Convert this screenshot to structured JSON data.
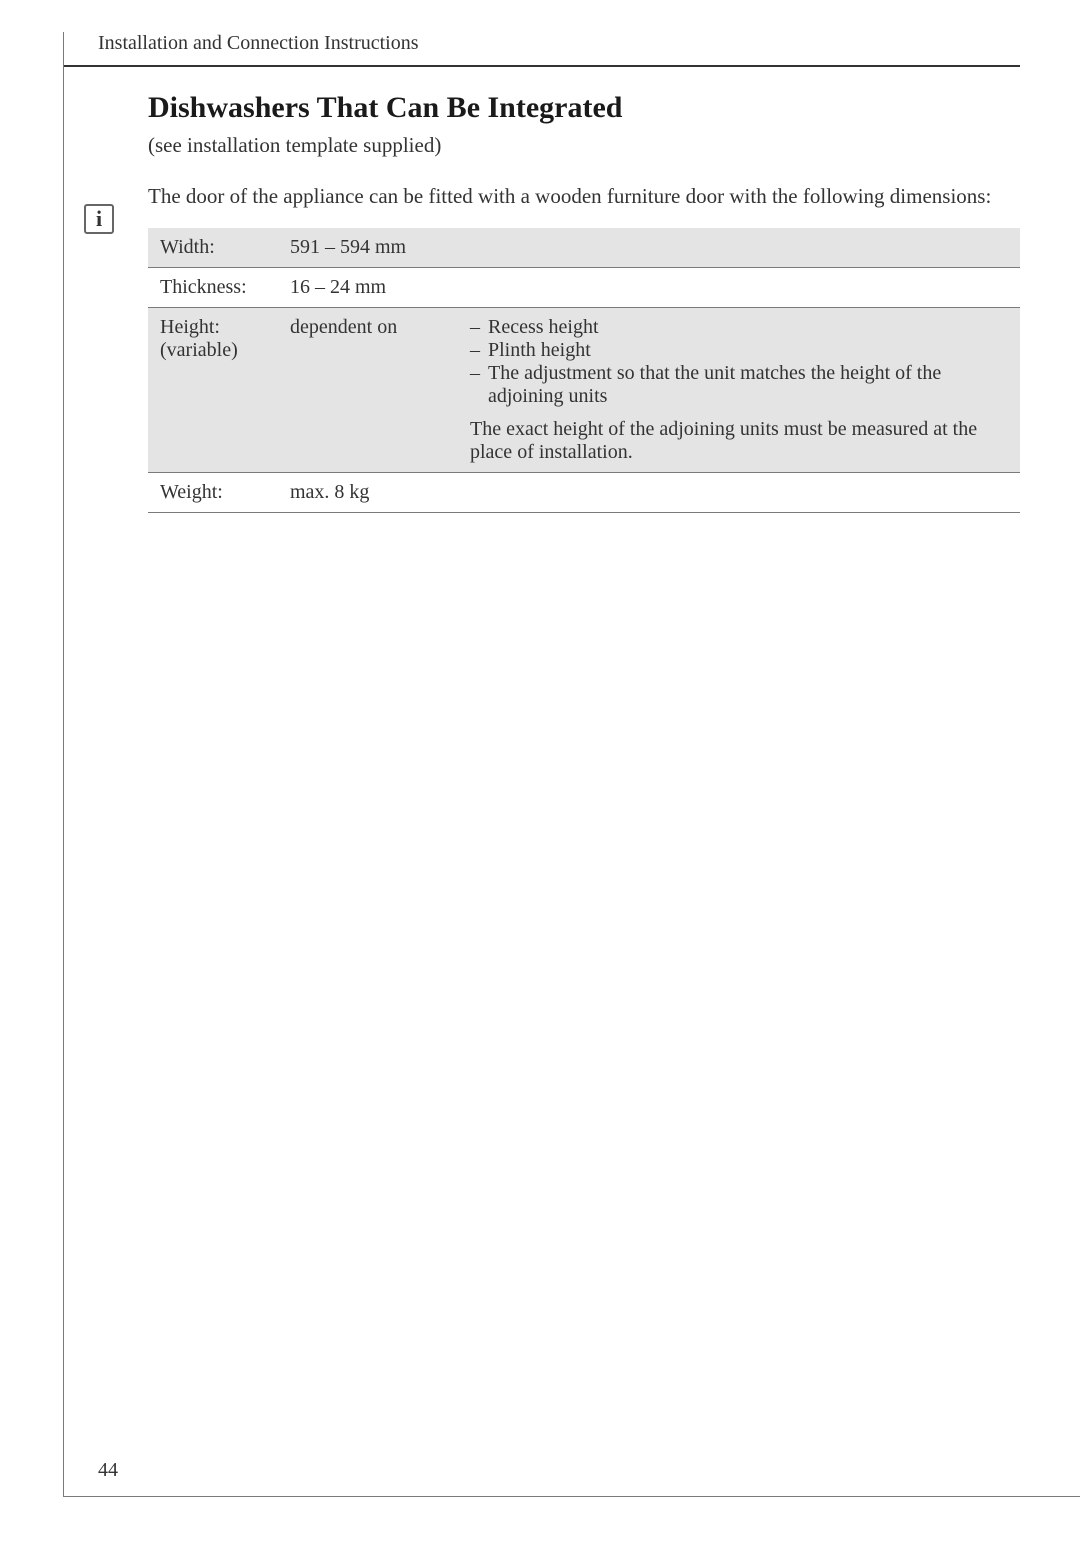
{
  "header": "Installation and Connection Instructions",
  "title": "Dishwashers That Can Be Integrated",
  "subtitle": "(see installation template supplied)",
  "infoText": "The door of the appliance can be fitted with a wooden furniture door with the following dimensions:",
  "table": {
    "rows": [
      {
        "label": "Width:",
        "value": "591 – 594 mm",
        "extra": ""
      },
      {
        "label": "Thickness:",
        "value": "16 – 24 mm",
        "extra": ""
      },
      {
        "label": "Height:\n(variable)",
        "value": "dependent on",
        "bullets": [
          "Recess height",
          "Plinth height",
          "The adjustment so that the unit matches the height of the adjoining units"
        ],
        "note": "The exact height of the adjoining units must be measured at the place of installation."
      },
      {
        "label": "Weight:",
        "value": "max. 8 kg",
        "extra": ""
      }
    ]
  },
  "pageNumber": "44",
  "colors": {
    "border": "#7a7a7a",
    "text": "#333333",
    "shaded": "#e4e4e4"
  }
}
